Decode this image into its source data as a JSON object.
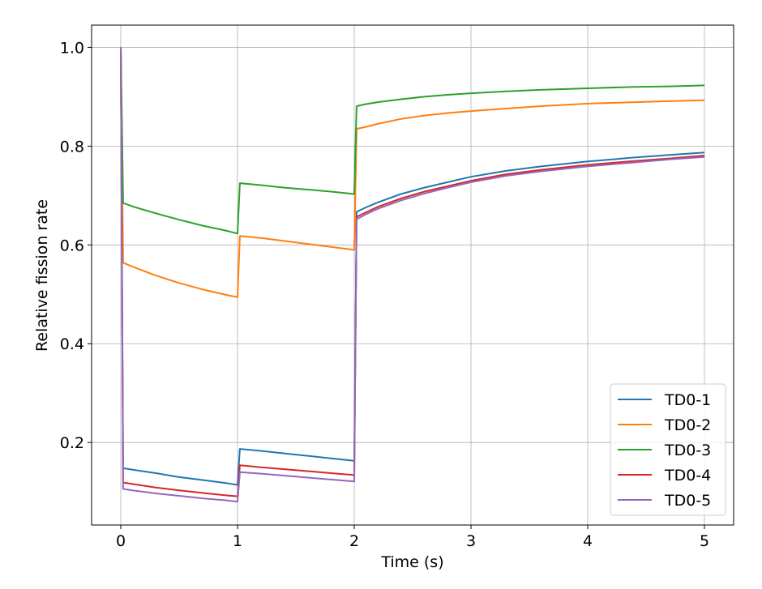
{
  "chart_data": {
    "type": "line",
    "title": "",
    "xlabel": "Time (s)",
    "ylabel": "Relative fission rate",
    "xlim": [
      -0.25,
      5.25
    ],
    "ylim": [
      0.033,
      1.045
    ],
    "xticks": [
      0,
      1,
      2,
      3,
      4,
      5
    ],
    "xtick_labels": [
      "0",
      "1",
      "2",
      "3",
      "4",
      "5"
    ],
    "yticks": [
      0.2,
      0.4,
      0.6,
      0.8,
      1.0
    ],
    "ytick_labels": [
      "0.2",
      "0.4",
      "0.6",
      "0.8",
      "1.0"
    ],
    "grid": true,
    "legend_position": "bottom-right",
    "series": [
      {
        "name": "TD0-1",
        "color": "#1f77b4",
        "x": [
          0,
          0.02,
          0.1,
          0.3,
          0.5,
          0.7,
          0.9,
          1.0,
          1.02,
          1.2,
          1.4,
          1.6,
          1.8,
          2.0,
          2.02,
          2.1,
          2.2,
          2.4,
          2.6,
          2.8,
          3.0,
          3.3,
          3.6,
          4.0,
          4.4,
          4.7,
          5.0
        ],
        "y": [
          1.0,
          0.148,
          0.145,
          0.138,
          0.13,
          0.124,
          0.118,
          0.114,
          0.187,
          0.183,
          0.178,
          0.173,
          0.168,
          0.163,
          0.667,
          0.676,
          0.686,
          0.703,
          0.716,
          0.727,
          0.738,
          0.75,
          0.759,
          0.769,
          0.777,
          0.782,
          0.787
        ]
      },
      {
        "name": "TD0-2",
        "color": "#ff7f0e",
        "x": [
          0,
          0.02,
          0.1,
          0.3,
          0.5,
          0.7,
          0.9,
          1.0,
          1.02,
          1.2,
          1.4,
          1.6,
          1.8,
          2.0,
          2.02,
          2.1,
          2.2,
          2.4,
          2.6,
          2.8,
          3.0,
          3.3,
          3.6,
          4.0,
          4.4,
          4.7,
          5.0
        ],
        "y": [
          1.0,
          0.564,
          0.556,
          0.538,
          0.523,
          0.51,
          0.499,
          0.494,
          0.618,
          0.614,
          0.608,
          0.602,
          0.596,
          0.59,
          0.835,
          0.839,
          0.845,
          0.855,
          0.862,
          0.867,
          0.871,
          0.876,
          0.881,
          0.886,
          0.889,
          0.891,
          0.893
        ]
      },
      {
        "name": "TD0-3",
        "color": "#2ca02c",
        "x": [
          0,
          0.02,
          0.1,
          0.3,
          0.5,
          0.7,
          0.9,
          1.0,
          1.02,
          1.2,
          1.4,
          1.6,
          1.8,
          2.0,
          2.02,
          2.1,
          2.2,
          2.4,
          2.6,
          2.8,
          3.0,
          3.3,
          3.6,
          4.0,
          4.4,
          4.7,
          5.0
        ],
        "y": [
          1.0,
          0.685,
          0.678,
          0.664,
          0.651,
          0.639,
          0.629,
          0.623,
          0.725,
          0.721,
          0.716,
          0.712,
          0.708,
          0.703,
          0.881,
          0.885,
          0.889,
          0.895,
          0.9,
          0.904,
          0.907,
          0.911,
          0.914,
          0.917,
          0.92,
          0.921,
          0.923
        ]
      },
      {
        "name": "TD0-4",
        "color": "#d62728",
        "x": [
          0,
          0.02,
          0.1,
          0.3,
          0.5,
          0.7,
          0.9,
          1.0,
          1.02,
          1.2,
          1.4,
          1.6,
          1.8,
          2.0,
          2.02,
          2.1,
          2.2,
          2.4,
          2.6,
          2.8,
          3.0,
          3.3,
          3.6,
          4.0,
          4.4,
          4.7,
          5.0
        ],
        "y": [
          1.0,
          0.119,
          0.116,
          0.109,
          0.103,
          0.098,
          0.093,
          0.091,
          0.154,
          0.15,
          0.146,
          0.142,
          0.138,
          0.134,
          0.657,
          0.666,
          0.677,
          0.694,
          0.708,
          0.719,
          0.73,
          0.743,
          0.752,
          0.762,
          0.77,
          0.775,
          0.781
        ]
      },
      {
        "name": "TD0-5",
        "color": "#9467bd",
        "x": [
          0,
          0.02,
          0.1,
          0.3,
          0.5,
          0.7,
          0.9,
          1.0,
          1.02,
          1.2,
          1.4,
          1.6,
          1.8,
          2.0,
          2.02,
          2.1,
          2.2,
          2.4,
          2.6,
          2.8,
          3.0,
          3.3,
          3.6,
          4.0,
          4.4,
          4.7,
          5.0
        ],
        "y": [
          1.0,
          0.106,
          0.103,
          0.097,
          0.092,
          0.087,
          0.083,
          0.08,
          0.14,
          0.137,
          0.133,
          0.129,
          0.125,
          0.121,
          0.652,
          0.662,
          0.673,
          0.69,
          0.704,
          0.716,
          0.727,
          0.74,
          0.749,
          0.759,
          0.767,
          0.773,
          0.778
        ]
      }
    ]
  }
}
